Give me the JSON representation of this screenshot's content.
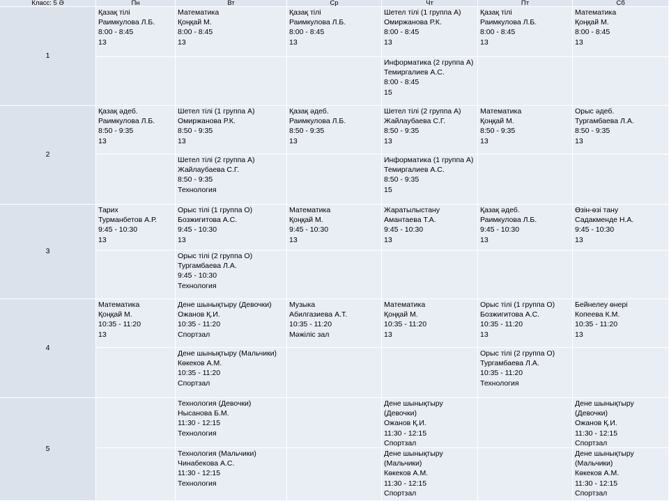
{
  "header": {
    "class_label": "Класс: 5 Ә",
    "days": [
      "Пн",
      "Вт",
      "Ср",
      "Чт",
      "Пт",
      "Сб"
    ]
  },
  "lessons": [
    {
      "number": "1",
      "slots": [
        [
          [
            "Қазақ тілі",
            "Раимкулова Л.Б.",
            "8:00 - 8:45",
            "13"
          ],
          [
            "Математика",
            "Қоңқай М.",
            "8:00 - 8:45",
            "13"
          ],
          [
            "Қазақ тілі",
            "Раимкулова Л.Б.",
            "8:00 - 8:45",
            "13"
          ],
          [
            "Шетел тілі (1 группа А)",
            "Омиржанова Р.К.",
            "8:00 - 8:45",
            "13"
          ],
          [
            "Қазақ тілі",
            "Раимкулова Л.Б.",
            "8:00 - 8:45",
            "13"
          ],
          [
            "Математика",
            "Қоңқай М.",
            "8:00 - 8:45",
            "13"
          ]
        ],
        [
          null,
          null,
          null,
          [
            "Информатика (2 группа А)",
            "Темиргалиев А.С.",
            "8:00 - 8:45",
            "15"
          ],
          null,
          null
        ]
      ]
    },
    {
      "number": "2",
      "slots": [
        [
          [
            "Қазақ әдеб.",
            "Раимкулова Л.Б.",
            "8:50 - 9:35",
            "13"
          ],
          [
            "Шетел тілі (1 группа А)",
            "Омиржанова Р.К.",
            "8:50 - 9:35",
            "13"
          ],
          [
            "Қазақ әдеб.",
            "Раимкулова Л.Б.",
            "8:50 - 9:35",
            "13"
          ],
          [
            "Шетел тілі (2 группа А)",
            "Жайлаубаева С.Г.",
            "8:50 - 9:35",
            "13"
          ],
          [
            "Математика",
            "Қоңқай М.",
            "8:50 - 9:35",
            "13"
          ],
          [
            "Орыс әдеб.",
            "Тургамбаева Л.А.",
            "8:50 - 9:35",
            "13"
          ]
        ],
        [
          null,
          [
            "Шетел тілі (2 группа А)",
            "Жайлаубаева С.Г.",
            "8:50 - 9:35",
            "Технология"
          ],
          null,
          [
            "Информатика (1 группа А)",
            "Темиргалиев А.С.",
            "8:50 - 9:35",
            "15"
          ],
          null,
          null
        ]
      ]
    },
    {
      "number": "3",
      "slots": [
        [
          [
            "Тарих",
            "Турманбетов А.Р.",
            "9:45 - 10:30",
            "13"
          ],
          [
            "Орыс тілі (1 группа О)",
            "Бозжигитова А.С.",
            "9:45 - 10:30",
            "13"
          ],
          [
            "Математика",
            "Қоңқай М.",
            "9:45 - 10:30",
            "13"
          ],
          [
            "Жаратылыстану",
            "Амантаева Т.А.",
            "9:45 - 10:30",
            "13"
          ],
          [
            "Қазақ әдеб.",
            "Раимкулова Л.Б.",
            "9:45 - 10:30",
            "13"
          ],
          [
            "Өзін-өзі тану",
            "Садакменде Н.А.",
            "9:45 - 10:30",
            "13"
          ]
        ],
        [
          null,
          [
            "Орыс тілі (2 группа О)",
            "Тургамбаева Л.А.",
            "9:45 - 10:30",
            "Технология"
          ],
          null,
          null,
          null,
          null
        ]
      ]
    },
    {
      "number": "4",
      "slots": [
        [
          [
            "Математика",
            "Қоңқай М.",
            "10:35 - 11:20",
            "13"
          ],
          [
            "Дене шынықтыру (Девочки)",
            "Ожанов Қ.И.",
            "10:35 - 11:20",
            "Спортзал"
          ],
          [
            "Музыка",
            "Абилгазиева А.Т.",
            "10:35 - 11:20",
            "Мәжіліс зал"
          ],
          [
            "Математика",
            "Қоңқай М.",
            "10:35 - 11:20",
            "13"
          ],
          [
            "Орыс тілі (1 группа О)",
            "Бозжигитова А.С.",
            "10:35 - 11:20",
            "13"
          ],
          [
            "Бейнелеу өнері",
            "Копеева К.М.",
            "10:35 - 11:20",
            "13"
          ]
        ],
        [
          null,
          [
            "Дене шынықтыру (Мальчики)",
            "Көкеков А.М.",
            "10:35 - 11:20",
            "Спортзал"
          ],
          null,
          null,
          [
            "Орыс тілі (2 группа О)",
            "Тургамбаева Л.А.",
            "10:35 - 11:20",
            "Технология"
          ],
          null
        ]
      ]
    },
    {
      "number": "5",
      "slots": [
        [
          null,
          [
            "Технология (Девочки)",
            "Нысанова Б.М.",
            "11:30 - 12:15",
            "Технология"
          ],
          null,
          [
            "Дене шынықтыру",
            "(Девочки)",
            "Ожанов Қ.И.",
            "11:30 - 12:15",
            "Спортзал"
          ],
          null,
          [
            "Дене шынықтыру",
            "(Девочки)",
            "Ожанов Қ.И.",
            "11:30 - 12:15",
            "Спортзал"
          ]
        ],
        [
          null,
          [
            "Технология (Мальчики)",
            "Чинабекова А.С.",
            "11:30 - 12:15",
            "Технология"
          ],
          null,
          [
            "Дене шынықтыру",
            "(Мальчики)",
            "Көкеков А.М.",
            "11:30 - 12:15",
            "Спортзал"
          ],
          null,
          [
            "Дене шынықтыру",
            "(Мальчики)",
            "Көкеков А.М.",
            "11:30 - 12:15",
            "Спортзал"
          ]
        ]
      ]
    }
  ]
}
